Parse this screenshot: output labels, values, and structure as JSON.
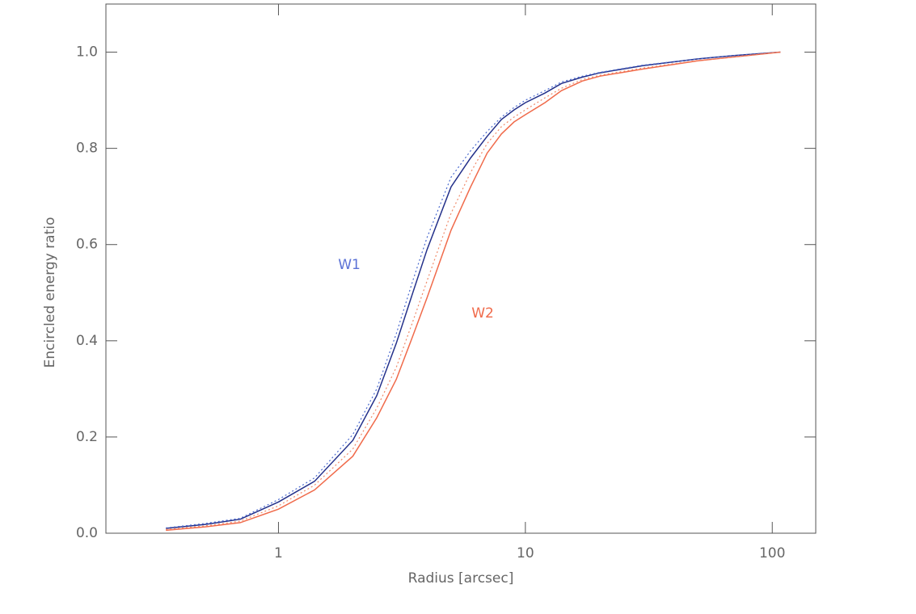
{
  "chart_data": {
    "type": "line",
    "x_label": "Radius [arcsec]",
    "y_label": "Encircled energy ratio",
    "x_scale": "log",
    "xlim": [
      0.2,
      150
    ],
    "xticks": [
      1,
      10,
      100
    ],
    "ylim": [
      0,
      1.1
    ],
    "yticks": [
      {
        "value": 0,
        "label": "0.0"
      },
      {
        "value": 0.2,
        "label": "0.2"
      },
      {
        "value": 0.4,
        "label": "0.4"
      },
      {
        "value": 0.6,
        "label": "0.6"
      },
      {
        "value": 0.8,
        "label": "0.8"
      },
      {
        "value": 1.0,
        "label": "1.0"
      }
    ],
    "x": [
      0.35,
      0.5,
      0.7,
      1.0,
      1.4,
      2,
      2.5,
      3,
      3.5,
      4,
      5,
      6,
      7,
      8,
      9,
      10,
      12,
      14,
      17,
      20,
      30,
      50,
      70,
      108
    ],
    "series": [
      {
        "name": "W1",
        "color": "#23308a",
        "label_color": "#5b72d6",
        "dash": "solid",
        "values": [
          0.01,
          0.018,
          0.029,
          0.065,
          0.108,
          0.193,
          0.286,
          0.395,
          0.5,
          0.59,
          0.72,
          0.78,
          0.825,
          0.86,
          0.88,
          0.895,
          0.915,
          0.935,
          0.948,
          0.957,
          0.972,
          0.986,
          0.993,
          1.0
        ]
      },
      {
        "color": "#4a6ad0",
        "dash": "dotted",
        "values": [
          0.011,
          0.02,
          0.031,
          0.07,
          0.115,
          0.205,
          0.3,
          0.415,
          0.525,
          0.615,
          0.74,
          0.795,
          0.835,
          0.865,
          0.885,
          0.9,
          0.92,
          0.938,
          0.95,
          0.958,
          0.973,
          0.986,
          0.993,
          1.0
        ]
      },
      {
        "name": "W2",
        "color": "#f06a4a",
        "label_color": "#f06a4a",
        "dash": "solid",
        "values": [
          0.006,
          0.013,
          0.022,
          0.05,
          0.09,
          0.16,
          0.24,
          0.32,
          0.41,
          0.49,
          0.63,
          0.72,
          0.79,
          0.83,
          0.855,
          0.87,
          0.895,
          0.92,
          0.94,
          0.95,
          0.965,
          0.982,
          0.99,
          1.0
        ]
      },
      {
        "color": "#f08a6a",
        "dash": "dotted",
        "values": [
          0.008,
          0.015,
          0.025,
          0.057,
          0.1,
          0.175,
          0.26,
          0.345,
          0.44,
          0.525,
          0.665,
          0.75,
          0.81,
          0.845,
          0.865,
          0.88,
          0.905,
          0.925,
          0.943,
          0.952,
          0.967,
          0.983,
          0.99,
          1.0
        ]
      }
    ]
  }
}
